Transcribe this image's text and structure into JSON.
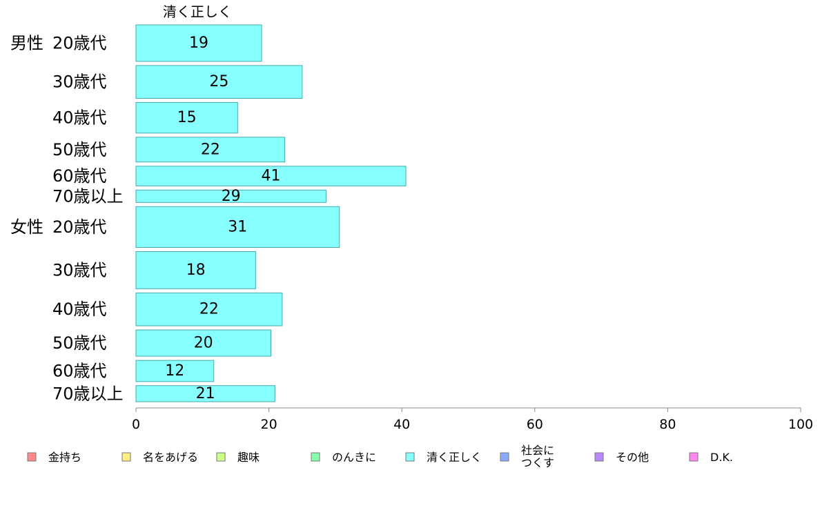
{
  "chart_data": {
    "type": "bar",
    "orientation": "horizontal",
    "series_header": "清く正しく",
    "groups": [
      {
        "label": "男性",
        "categories": [
          "20歳代",
          "30歳代",
          "40歳代",
          "50歳代",
          "60歳代",
          "70歳以上"
        ]
      },
      {
        "label": "女性",
        "categories": [
          "20歳代",
          "30歳代",
          "40歳代",
          "50歳代",
          "60歳代",
          "70歳以上"
        ]
      }
    ],
    "values": [
      19,
      25,
      15,
      22,
      41,
      29,
      31,
      18,
      22,
      20,
      12,
      21
    ],
    "bar_values": [
      18.9,
      25.0,
      15.3,
      22.4,
      40.6,
      28.6,
      30.6,
      18.0,
      22.0,
      20.3,
      11.7,
      20.9
    ],
    "bar_weights": [
      50,
      45,
      42,
      34,
      27,
      17,
      56,
      51,
      45,
      36,
      29,
      22
    ],
    "xlim": [
      0,
      100
    ],
    "xticks": [
      0,
      20,
      40,
      60,
      80,
      100
    ],
    "bar_color": "#88ffff",
    "bar_stroke": "#44aaaa",
    "grid": false,
    "legend": {
      "placement": "bottom",
      "entries": [
        {
          "label": "金持ち",
          "color": "#ff8888"
        },
        {
          "label": "名をあげる",
          "color": "#ffee88"
        },
        {
          "label": "趣味",
          "color": "#ccff88"
        },
        {
          "label": "のんきに",
          "color": "#88ffaa"
        },
        {
          "label": "清く正しく",
          "color": "#88ffff"
        },
        {
          "label": "社会に\nつくす",
          "color": "#88aaff"
        },
        {
          "label": "その他",
          "color": "#bb88ff"
        },
        {
          "label": "D.K.",
          "color": "#ff88ee"
        }
      ]
    }
  }
}
